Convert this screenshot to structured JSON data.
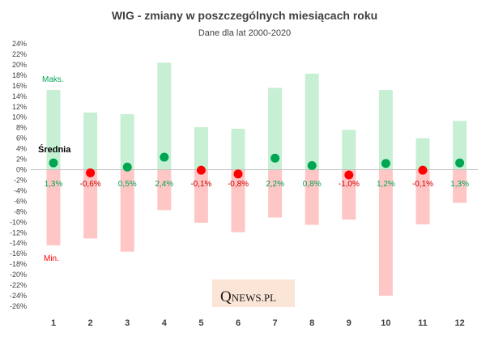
{
  "chart_data": {
    "type": "bar",
    "title": "WIG - zmiany w poszczególnych miesiącach roku",
    "subtitle": "Dane dla lat 2000-2020",
    "categories": [
      "1",
      "2",
      "3",
      "4",
      "5",
      "6",
      "7",
      "8",
      "9",
      "10",
      "11",
      "12"
    ],
    "series": [
      {
        "name": "Maks.",
        "values": [
          15.2,
          10.9,
          10.6,
          20.4,
          8.1,
          7.8,
          15.6,
          18.3,
          7.6,
          15.2,
          6.0,
          9.3
        ]
      },
      {
        "name": "Min.",
        "values": [
          -14.4,
          -13.1,
          -15.6,
          -7.7,
          -10.1,
          -11.9,
          -9.1,
          -10.5,
          -9.5,
          -24.0,
          -10.4,
          -6.3
        ]
      },
      {
        "name": "Średnia",
        "values": [
          1.3,
          -0.6,
          0.5,
          2.4,
          -0.1,
          -0.8,
          2.2,
          0.8,
          -1.0,
          1.2,
          -0.1,
          1.3
        ]
      }
    ],
    "avg_labels": [
      "1,3%",
      "-0,6%",
      "0,5%",
      "2,4%",
      "-0,1%",
      "-0,8%",
      "2,2%",
      "0,8%",
      "-1,0%",
      "1,2%",
      "-0,1%",
      "1,3%"
    ],
    "ylim": [
      -26,
      24
    ],
    "yticks": [
      "24%",
      "22%",
      "20%",
      "18%",
      "16%",
      "14%",
      "12%",
      "10%",
      "8%",
      "6%",
      "4%",
      "2%",
      "0%",
      "-2%",
      "-4%",
      "-6%",
      "-8%",
      "-10%",
      "-12%",
      "-14%",
      "-16%",
      "-18%",
      "-20%",
      "-22%",
      "-24%",
      "-26%"
    ],
    "ytick_values": [
      24,
      22,
      20,
      18,
      16,
      14,
      12,
      10,
      8,
      6,
      4,
      2,
      0,
      -2,
      -4,
      -6,
      -8,
      -10,
      -12,
      -14,
      -16,
      -18,
      -20,
      -22,
      -24,
      -26
    ],
    "annotations": {
      "max": "Maks.",
      "avg": "Średnia",
      "min": "Min."
    },
    "grid": false,
    "colors": {
      "max_bar": "#c6efd3",
      "min_bar": "#ffc6c6",
      "positive": "#00a651",
      "negative": "#ff0000",
      "axis": "#bfbfbf"
    }
  },
  "logo": {
    "big": "Q",
    "small": "NEWS.PL",
    "bg": "#fbe5d6"
  }
}
